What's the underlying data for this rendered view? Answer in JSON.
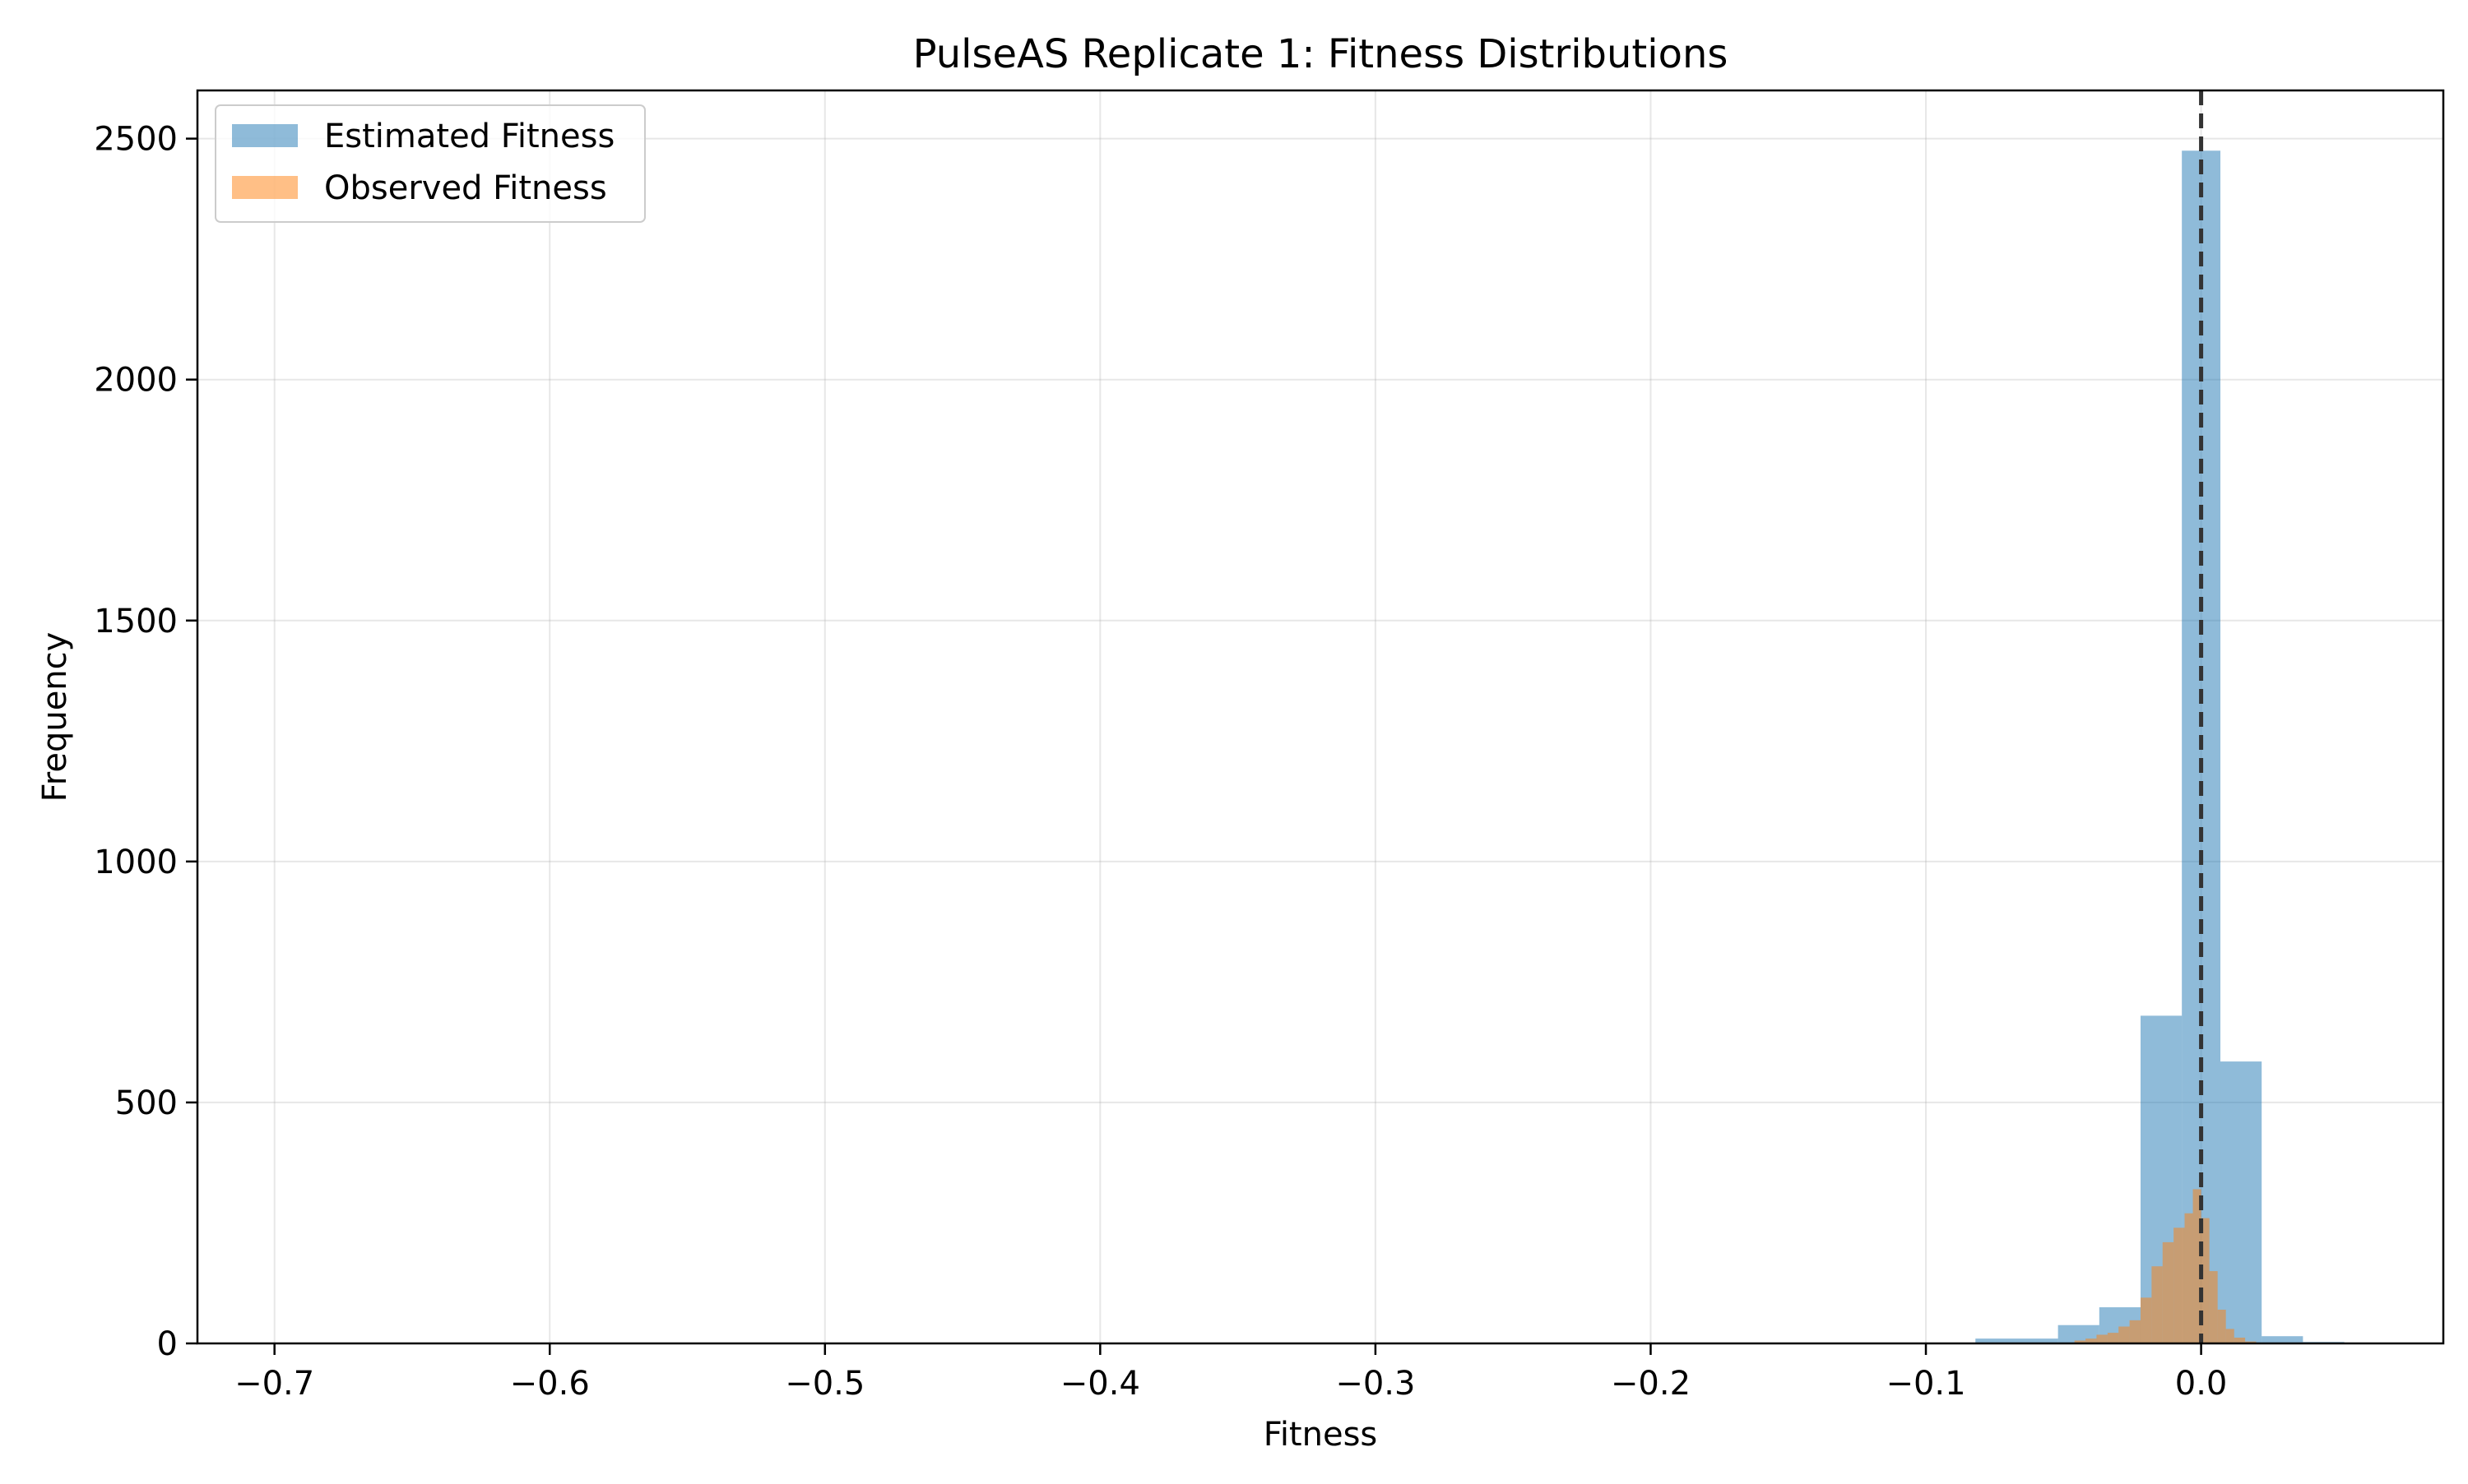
{
  "chart_data": {
    "type": "bar",
    "title": "PulseAS Replicate 1: Fitness Distributions",
    "xlabel": "Fitness",
    "ylabel": "Frequency",
    "xlim": [
      -0.728,
      0.088
    ],
    "ylim": [
      0,
      2600
    ],
    "xticks": [
      -0.7,
      -0.6,
      -0.5,
      -0.4,
      -0.3,
      -0.2,
      -0.1,
      0.0
    ],
    "xtick_labels": [
      "−0.7",
      "−0.6",
      "−0.5",
      "−0.4",
      "−0.3",
      "−0.2",
      "−0.1",
      "0.0"
    ],
    "yticks": [
      0,
      500,
      1000,
      1500,
      2000,
      2500
    ],
    "ytick_labels": [
      "0",
      "500",
      "1000",
      "1500",
      "2000",
      "2500"
    ],
    "grid": true,
    "legend_position": "top-left",
    "reference_line": {
      "x": 0.0,
      "style": "dashed",
      "color": "#333333"
    },
    "series": [
      {
        "name": "Estimated Fitness",
        "color": "#1f77b4",
        "opacity": 0.5,
        "bins": [
          {
            "x0": -0.7,
            "x1": -0.685,
            "count": 1
          },
          {
            "x0": -0.082,
            "x1": -0.052,
            "count": 10
          },
          {
            "x0": -0.052,
            "x1": -0.037,
            "count": 38
          },
          {
            "x0": -0.037,
            "x1": -0.022,
            "count": 75
          },
          {
            "x0": -0.022,
            "x1": -0.007,
            "count": 680
          },
          {
            "x0": -0.007,
            "x1": 0.007,
            "count": 2475
          },
          {
            "x0": 0.007,
            "x1": 0.022,
            "count": 585
          },
          {
            "x0": 0.022,
            "x1": 0.037,
            "count": 15
          },
          {
            "x0": 0.037,
            "x1": 0.052,
            "count": 3
          }
        ]
      },
      {
        "name": "Observed Fitness",
        "color": "#ff7f0e",
        "opacity": 0.5,
        "bins": [
          {
            "x0": -0.046,
            "x1": -0.042,
            "count": 6
          },
          {
            "x0": -0.042,
            "x1": -0.038,
            "count": 10
          },
          {
            "x0": -0.038,
            "x1": -0.034,
            "count": 18
          },
          {
            "x0": -0.034,
            "x1": -0.03,
            "count": 22
          },
          {
            "x0": -0.03,
            "x1": -0.026,
            "count": 35
          },
          {
            "x0": -0.026,
            "x1": -0.022,
            "count": 48
          },
          {
            "x0": -0.022,
            "x1": -0.018,
            "count": 95
          },
          {
            "x0": -0.018,
            "x1": -0.014,
            "count": 160
          },
          {
            "x0": -0.014,
            "x1": -0.01,
            "count": 210
          },
          {
            "x0": -0.01,
            "x1": -0.006,
            "count": 240
          },
          {
            "x0": -0.006,
            "x1": -0.003,
            "count": 270
          },
          {
            "x0": -0.003,
            "x1": 0.0,
            "count": 320
          },
          {
            "x0": 0.0,
            "x1": 0.003,
            "count": 260
          },
          {
            "x0": 0.003,
            "x1": 0.006,
            "count": 150
          },
          {
            "x0": 0.006,
            "x1": 0.009,
            "count": 70
          },
          {
            "x0": 0.009,
            "x1": 0.012,
            "count": 30
          },
          {
            "x0": 0.012,
            "x1": 0.016,
            "count": 12
          },
          {
            "x0": 0.016,
            "x1": 0.02,
            "count": 4
          }
        ]
      }
    ]
  }
}
